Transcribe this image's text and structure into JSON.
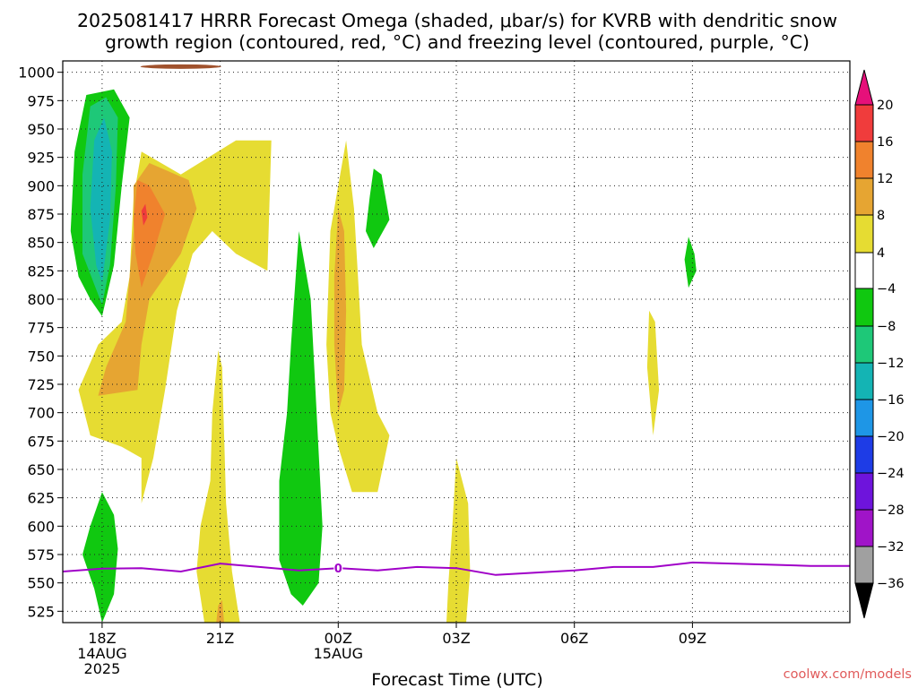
{
  "title_lines": [
    "2025081417 HRRR Forecast Omega (shaded, μbar/s) for KVRB with dendritic snow",
    "growth region (contoured, red, °C) and freezing level (contoured, purple, °C)"
  ],
  "credit": "coolwx.com/models",
  "chart_data": {
    "type": "contour",
    "title": "2025081417 HRRR Forecast Omega (shaded, μbar/s) for KVRB with dendritic snow growth region (contoured, red, °C) and freezing level (contoured, purple, °C)",
    "xlabel": "Forecast Time (UTC)",
    "ylabel": "",
    "x_hours_range": [
      -1,
      19
    ],
    "y_pressure_range": [
      1010,
      515
    ],
    "y_ticks": [
      525,
      550,
      575,
      600,
      625,
      650,
      675,
      700,
      725,
      750,
      775,
      800,
      825,
      850,
      875,
      900,
      925,
      950,
      975,
      1000
    ],
    "x_ticks": [
      {
        "hour": 0,
        "lines": [
          "18Z",
          "14AUG",
          "2025"
        ]
      },
      {
        "hour": 3,
        "lines": [
          "21Z"
        ]
      },
      {
        "hour": 6,
        "lines": [
          "00Z",
          "15AUG"
        ]
      },
      {
        "hour": 9,
        "lines": [
          "03Z"
        ]
      },
      {
        "hour": 12,
        "lines": [
          "06Z"
        ]
      },
      {
        "hour": 15,
        "lines": [
          "09Z"
        ]
      }
    ],
    "grid": true,
    "colorbar": {
      "ticks": [
        20,
        16,
        12,
        8,
        4,
        -4,
        -8,
        -12,
        -16,
        -20,
        -24,
        -28,
        -32,
        -36
      ],
      "bands": [
        {
          "from": 20,
          "to": 24,
          "color": "#e6107a"
        },
        {
          "from": 16,
          "to": 20,
          "color": "#f03c3c"
        },
        {
          "from": 12,
          "to": 16,
          "color": "#f0822d"
        },
        {
          "from": 8,
          "to": 12,
          "color": "#e6a532"
        },
        {
          "from": 4,
          "to": 8,
          "color": "#e6dc32"
        },
        {
          "from": -4,
          "to": 4,
          "color": "#ffffff"
        },
        {
          "from": -8,
          "to": -4,
          "color": "#10c810"
        },
        {
          "from": -12,
          "to": -8,
          "color": "#1ec878"
        },
        {
          "from": -16,
          "to": -12,
          "color": "#14b4b4"
        },
        {
          "from": -20,
          "to": -16,
          "color": "#1e96e6"
        },
        {
          "from": -24,
          "to": -20,
          "color": "#1e3ce6"
        },
        {
          "from": -28,
          "to": -24,
          "color": "#6e14dc"
        },
        {
          "from": -32,
          "to": -28,
          "color": "#a014c8"
        },
        {
          "from": -36,
          "to": -32,
          "color": "#a0a0a0"
        },
        {
          "from": -40,
          "to": -36,
          "color": "#000000"
        }
      ]
    },
    "freezing_level": {
      "label": "0",
      "color": "#a000c8",
      "points": [
        [
          -1,
          560
        ],
        [
          0,
          562.5
        ],
        [
          1,
          563
        ],
        [
          2,
          560
        ],
        [
          3,
          567
        ],
        [
          4,
          564
        ],
        [
          5,
          561
        ],
        [
          6,
          563
        ],
        [
          7,
          561
        ],
        [
          8,
          564
        ],
        [
          9,
          563
        ],
        [
          10,
          557
        ],
        [
          11,
          559
        ],
        [
          12,
          561
        ],
        [
          13,
          564
        ],
        [
          14,
          564
        ],
        [
          15,
          568
        ],
        [
          16,
          567
        ],
        [
          17,
          566
        ],
        [
          18,
          565
        ],
        [
          19,
          565
        ]
      ]
    },
    "shaded_regions": [
      {
        "band": "-8..-4",
        "color": "#10c810",
        "points": [
          [
            0.0,
            515
          ],
          [
            0.3,
            540
          ],
          [
            0.4,
            580
          ],
          [
            0.3,
            610
          ],
          [
            0.0,
            630
          ],
          [
            -0.3,
            600
          ],
          [
            -0.5,
            575
          ],
          [
            -0.2,
            545
          ]
        ]
      },
      {
        "band": "-8..-4",
        "color": "#10c810",
        "points": [
          [
            -0.3,
            800
          ],
          [
            0.0,
            785
          ],
          [
            0.3,
            830
          ],
          [
            0.5,
            900
          ],
          [
            0.7,
            960
          ],
          [
            0.3,
            985
          ],
          [
            -0.4,
            980
          ],
          [
            -0.7,
            930
          ],
          [
            -0.8,
            860
          ],
          [
            -0.6,
            820
          ]
        ]
      },
      {
        "band": "-12..-8",
        "color": "#1ec878",
        "points": [
          [
            0.0,
            795
          ],
          [
            0.2,
            830
          ],
          [
            0.35,
            900
          ],
          [
            0.4,
            960
          ],
          [
            0.1,
            978
          ],
          [
            -0.3,
            970
          ],
          [
            -0.5,
            910
          ],
          [
            -0.5,
            840
          ]
        ]
      },
      {
        "band": "-16..-12",
        "color": "#14b4b4",
        "points": [
          [
            0.0,
            815
          ],
          [
            0.2,
            870
          ],
          [
            0.25,
            930
          ],
          [
            0.05,
            960
          ],
          [
            -0.2,
            940
          ],
          [
            -0.3,
            880
          ],
          [
            -0.15,
            830
          ]
        ]
      },
      {
        "band": "-8..-4",
        "color": "#10c810",
        "points": [
          [
            4.8,
            540
          ],
          [
            5.1,
            530
          ],
          [
            5.5,
            550
          ],
          [
            5.6,
            600
          ],
          [
            5.45,
            700
          ],
          [
            5.3,
            800
          ],
          [
            5.0,
            860
          ],
          [
            4.8,
            760
          ],
          [
            4.7,
            700
          ],
          [
            4.5,
            640
          ],
          [
            4.5,
            570
          ]
        ]
      },
      {
        "band": "-8..-4",
        "color": "#10c810",
        "points": [
          [
            6.7,
            860
          ],
          [
            6.9,
            845
          ],
          [
            7.3,
            870
          ],
          [
            7.1,
            910
          ],
          [
            6.9,
            915
          ],
          [
            6.8,
            890
          ]
        ]
      },
      {
        "band": "-8..-4",
        "color": "#10c810",
        "points": [
          [
            14.9,
            810
          ],
          [
            15.1,
            825
          ],
          [
            15.05,
            840
          ],
          [
            14.9,
            855
          ],
          [
            14.8,
            835
          ]
        ]
      },
      {
        "band": "4..8",
        "color": "#e6dc32",
        "points": [
          [
            2.6,
            515
          ],
          [
            3.5,
            515
          ],
          [
            3.3,
            560
          ],
          [
            3.15,
            620
          ],
          [
            3.1,
            680
          ],
          [
            3.05,
            740
          ],
          [
            2.95,
            755
          ],
          [
            2.8,
            700
          ],
          [
            2.75,
            640
          ],
          [
            2.5,
            600
          ],
          [
            2.4,
            560
          ]
        ]
      },
      {
        "band": "4..8",
        "color": "#e6dc32",
        "points": [
          [
            1.0,
            620
          ],
          [
            1.3,
            660
          ],
          [
            1.6,
            720
          ],
          [
            1.9,
            790
          ],
          [
            2.3,
            840
          ],
          [
            2.8,
            860
          ],
          [
            3.4,
            840
          ],
          [
            4.2,
            825
          ],
          [
            4.3,
            940
          ],
          [
            3.4,
            940
          ],
          [
            2.0,
            910
          ],
          [
            1.0,
            930
          ],
          [
            0.8,
            890
          ],
          [
            0.7,
            820
          ],
          [
            0.5,
            780
          ],
          [
            -0.1,
            760
          ],
          [
            -0.6,
            720
          ],
          [
            -0.3,
            680
          ],
          [
            0.5,
            670
          ],
          [
            1.0,
            660
          ]
        ]
      },
      {
        "band": "8..12",
        "color": "#e6a532",
        "points": [
          [
            -0.1,
            715
          ],
          [
            0.9,
            720
          ],
          [
            1.0,
            760
          ],
          [
            1.2,
            800
          ],
          [
            2.0,
            840
          ],
          [
            2.4,
            880
          ],
          [
            2.2,
            905
          ],
          [
            1.2,
            920
          ],
          [
            0.8,
            900
          ],
          [
            0.8,
            860
          ],
          [
            0.6,
            780
          ],
          [
            0.1,
            740
          ]
        ]
      },
      {
        "band": "12..16",
        "color": "#f0822d",
        "points": [
          [
            1.0,
            810
          ],
          [
            1.3,
            840
          ],
          [
            1.6,
            875
          ],
          [
            1.2,
            900
          ],
          [
            0.9,
            905
          ],
          [
            0.8,
            870
          ],
          [
            0.85,
            840
          ]
        ]
      },
      {
        "band": "16..20",
        "color": "#f03c3c",
        "points": [
          [
            1.05,
            865
          ],
          [
            1.15,
            872
          ],
          [
            1.1,
            884
          ],
          [
            1.0,
            878
          ]
        ]
      },
      {
        "band": "4..8",
        "color": "#e6dc32",
        "points": [
          [
            6.35,
            630
          ],
          [
            7.0,
            630
          ],
          [
            7.3,
            680
          ],
          [
            7.0,
            700
          ],
          [
            6.6,
            760
          ],
          [
            6.5,
            820
          ],
          [
            6.4,
            880
          ],
          [
            6.2,
            940
          ],
          [
            5.8,
            860
          ],
          [
            5.7,
            760
          ],
          [
            5.8,
            700
          ],
          [
            6.0,
            670
          ]
        ]
      },
      {
        "band": "8..12",
        "color": "#e6a532",
        "points": [
          [
            6.0,
            700
          ],
          [
            6.15,
            720
          ],
          [
            6.2,
            790
          ],
          [
            6.15,
            860
          ],
          [
            6.0,
            880
          ],
          [
            5.9,
            820
          ],
          [
            5.9,
            760
          ]
        ]
      },
      {
        "band": "4..8",
        "color": "#e6dc32",
        "points": [
          [
            8.75,
            515
          ],
          [
            9.25,
            515
          ],
          [
            9.35,
            560
          ],
          [
            9.3,
            620
          ],
          [
            9.0,
            660
          ],
          [
            8.9,
            600
          ],
          [
            8.8,
            550
          ]
        ]
      },
      {
        "band": "4..8",
        "color": "#e6dc32",
        "points": [
          [
            14.0,
            680
          ],
          [
            14.15,
            720
          ],
          [
            14.05,
            780
          ],
          [
            13.9,
            790
          ],
          [
            13.85,
            740
          ],
          [
            13.95,
            700
          ]
        ]
      },
      {
        "band": "8..12",
        "color": "#e6a532",
        "points": [
          [
            2.9,
            515
          ],
          [
            3.1,
            515
          ],
          [
            3.05,
            535
          ],
          [
            2.95,
            530
          ]
        ]
      }
    ],
    "surface_strip": {
      "color": "#a0522d",
      "pressure_top": 1005,
      "pressure_bottom": 1010
    }
  }
}
